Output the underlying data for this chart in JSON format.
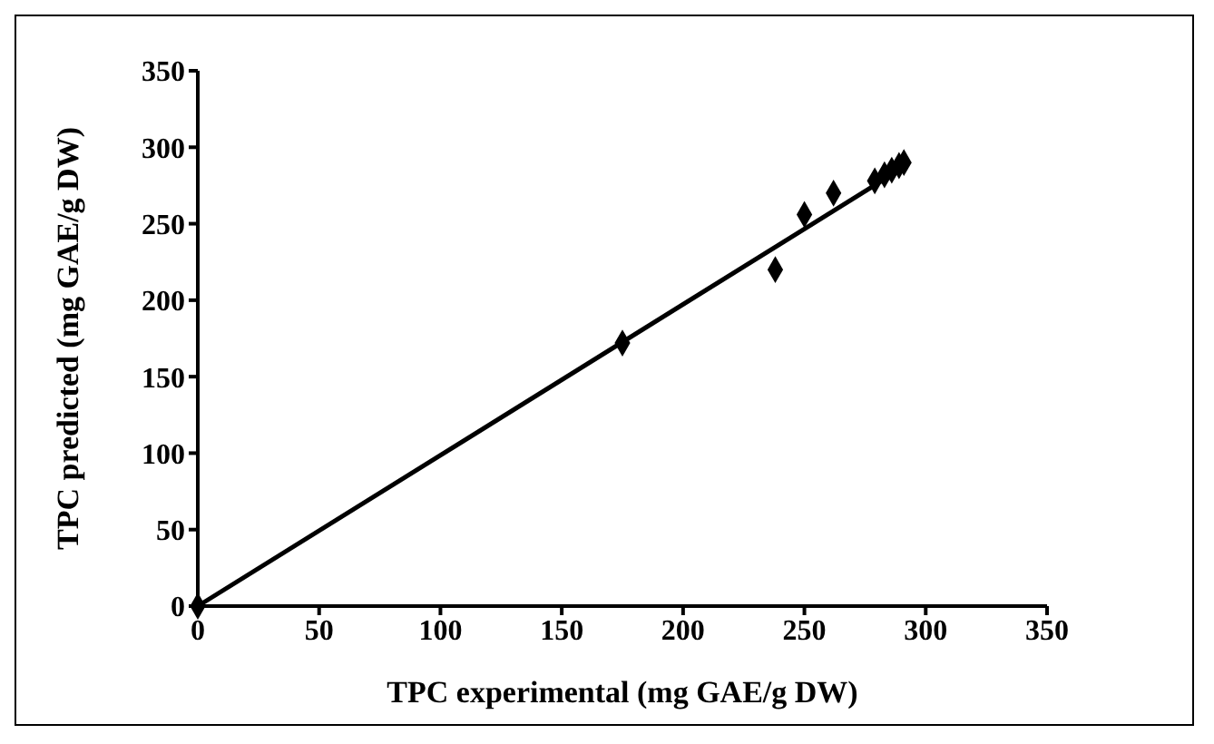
{
  "chart_data": {
    "type": "scatter",
    "xlabel": "TPC experimental (mg GAE/g DW)",
    "ylabel": "TPC predicted (mg GAE/g DW)",
    "x": [
      0,
      175,
      238,
      250,
      262,
      279,
      283,
      286,
      289,
      291
    ],
    "series": [
      {
        "color": "#000000",
        "marker": "diamond",
        "values": [
          0,
          172,
          220,
          256,
          270,
          278,
          282,
          285,
          288,
          290
        ]
      },
      {
        "type": "line",
        "color": "#000000",
        "marker": "none",
        "line_style": "solid",
        "x": [
          0,
          291
        ],
        "values": [
          0,
          287
        ]
      }
    ],
    "xlim": [
      0,
      350
    ],
    "ylim": [
      0,
      350
    ],
    "xticks": [
      0,
      50,
      100,
      150,
      200,
      250,
      300,
      350
    ],
    "yticks": [
      0,
      50,
      100,
      150,
      200,
      250,
      300,
      350
    ],
    "grid": false
  }
}
